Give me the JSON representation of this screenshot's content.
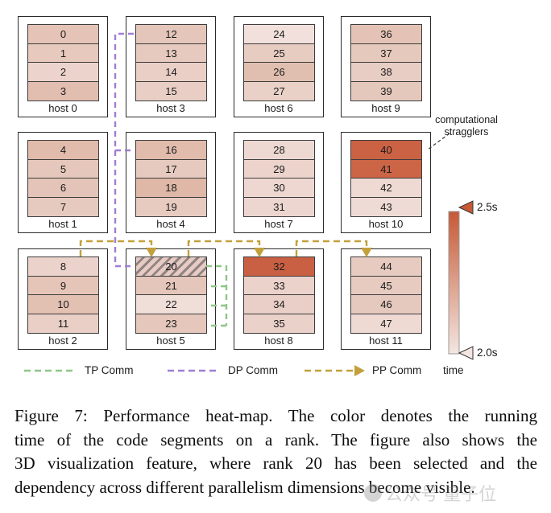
{
  "figure": {
    "hosts": [
      {
        "name": "host 0",
        "ranks": [
          {
            "label": "0",
            "color": "#e5c3b7"
          },
          {
            "label": "1",
            "color": "#e7c9be"
          },
          {
            "label": "2",
            "color": "#ecd4cc"
          },
          {
            "label": "3",
            "color": "#e2beb0"
          }
        ]
      },
      {
        "name": "host 3",
        "ranks": [
          {
            "label": "12",
            "color": "#e5c6ba"
          },
          {
            "label": "13",
            "color": "#e7cabf"
          },
          {
            "label": "14",
            "color": "#eacfc6"
          },
          {
            "label": "15",
            "color": "#e8cec4"
          }
        ]
      },
      {
        "name": "host 6",
        "ranks": [
          {
            "label": "24",
            "color": "#f1e0dc"
          },
          {
            "label": "25",
            "color": "#e7ccc2"
          },
          {
            "label": "26",
            "color": "#e1bfb0"
          },
          {
            "label": "27",
            "color": "#e9d1c8"
          }
        ]
      },
      {
        "name": "host 9",
        "ranks": [
          {
            "label": "36",
            "color": "#e4c3b6"
          },
          {
            "label": "37",
            "color": "#e6c9bd"
          },
          {
            "label": "38",
            "color": "#e8cdc4"
          },
          {
            "label": "39",
            "color": "#e5c8bc"
          }
        ]
      },
      {
        "name": "host 1",
        "ranks": [
          {
            "label": "4",
            "color": "#e1bbac"
          },
          {
            "label": "5",
            "color": "#e6c7bb"
          },
          {
            "label": "6",
            "color": "#e4c4b8"
          },
          {
            "label": "7",
            "color": "#e7cabf"
          }
        ]
      },
      {
        "name": "host 4",
        "ranks": [
          {
            "label": "16",
            "color": "#e1bbac"
          },
          {
            "label": "17",
            "color": "#e7cabf"
          },
          {
            "label": "18",
            "color": "#dfb8a7"
          },
          {
            "label": "19",
            "color": "#e7cbc0"
          }
        ]
      },
      {
        "name": "host 7",
        "ranks": [
          {
            "label": "28",
            "color": "#eed8d2"
          },
          {
            "label": "29",
            "color": "#ecd3cc"
          },
          {
            "label": "30",
            "color": "#eed7d1"
          },
          {
            "label": "31",
            "color": "#edd6d0"
          }
        ]
      },
      {
        "name": "host 10",
        "ranks": [
          {
            "label": "40",
            "color": "#cb6244"
          },
          {
            "label": "41",
            "color": "#cc6546"
          },
          {
            "label": "42",
            "color": "#eed9d3"
          },
          {
            "label": "43",
            "color": "#efdbd5"
          }
        ]
      },
      {
        "name": "host 2",
        "ranks": [
          {
            "label": "8",
            "color": "#ebd3cb"
          },
          {
            "label": "9",
            "color": "#e5c5b8"
          },
          {
            "label": "10",
            "color": "#e2c0b2"
          },
          {
            "label": "11",
            "color": "#e9cfc5"
          }
        ]
      },
      {
        "name": "host 5",
        "ranks": [
          {
            "label": "20",
            "color": "#e8ccc3",
            "hatched": true
          },
          {
            "label": "21",
            "color": "#e5c6ba"
          },
          {
            "label": "22",
            "color": "#f0ded9"
          },
          {
            "label": "23",
            "color": "#e5c7bb"
          }
        ]
      },
      {
        "name": "host 8",
        "ranks": [
          {
            "label": "32",
            "color": "#ca6043"
          },
          {
            "label": "33",
            "color": "#ebd2ca"
          },
          {
            "label": "34",
            "color": "#e9cfc7"
          },
          {
            "label": "35",
            "color": "#ead1c9"
          }
        ]
      },
      {
        "name": "host 11",
        "ranks": [
          {
            "label": "44",
            "color": "#e7cbc1"
          },
          {
            "label": "45",
            "color": "#e7cbc1"
          },
          {
            "label": "46",
            "color": "#e6c9be"
          },
          {
            "label": "47",
            "color": "#eed9d3"
          }
        ]
      }
    ],
    "selected_rank": "20",
    "annotation": {
      "line1": "computational",
      "line2": "stragglers"
    },
    "comm_colors": {
      "tp": "#8fc687",
      "dp": "#a07ed2",
      "pp": "#c2a13c"
    },
    "legend": {
      "tp_label": "TP Comm",
      "dp_label": "DP Comm",
      "pp_label": "PP Comm"
    },
    "colorbar": {
      "top_label": "2.5s",
      "bottom_label": "2.0s",
      "axis_label": "time",
      "top_color": "#c65936",
      "bottom_color": "#f3e6e1"
    }
  },
  "caption": {
    "lines": [
      "Figure 7: Performance heat-map. The color denotes the running",
      "time of the code segments on a rank. The figure also shows the",
      "3D visualization feature, where rank 20 has been selected and the",
      "dependency across different parallelism dimensions become visible."
    ]
  },
  "watermark": {
    "text": "公众号 量子位"
  }
}
